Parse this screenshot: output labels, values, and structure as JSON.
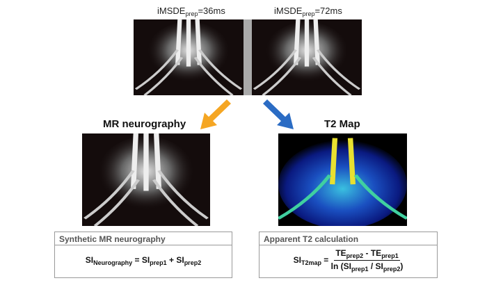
{
  "top_panels": [
    {
      "label": [
        {
          "text": "iMSDE",
          "sub": "prep"
        },
        {
          "text": "=36ms"
        }
      ]
    },
    {
      "label": [
        {
          "text": "iMSDE",
          "sub": "prep"
        },
        {
          "text": "=72ms"
        }
      ]
    }
  ],
  "outputs": [
    {
      "title": "MR neurography",
      "box_title": "Synthetic MR neurography",
      "formula": {
        "line": [
          {
            "text": "SI",
            "sub": "Neurography"
          },
          {
            "text": " = SI",
            "sub": "prep1"
          },
          {
            "text": " + SI",
            "sub": "prep2"
          }
        ]
      }
    },
    {
      "title": "T2 Map",
      "box_title": "Apparent T2 calculation",
      "formula": {
        "lhs": [
          {
            "text": "SI",
            "sub": "T2map"
          },
          {
            "text": " ="
          }
        ],
        "numerator": [
          {
            "text": "TE",
            "sub": "prep2"
          },
          {
            "text": " - TE",
            "sub": "prep1"
          }
        ],
        "denominator": [
          {
            "text": "ln (SI",
            "sub": "prep1"
          },
          {
            "text": " / SI",
            "sub": "prep2"
          },
          {
            "text": ")"
          }
        ]
      }
    }
  ]
}
